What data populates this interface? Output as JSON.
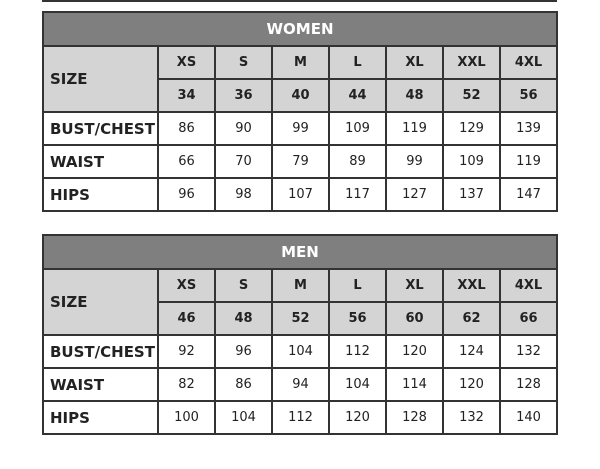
{
  "women": {
    "title": "WOMEN",
    "size_label": "SIZE",
    "sizes": [
      "XS",
      "S",
      "M",
      "L",
      "XL",
      "XXL",
      "4XL"
    ],
    "numbers": [
      "34",
      "36",
      "40",
      "44",
      "48",
      "52",
      "56"
    ],
    "rows": [
      {
        "label": "BUST/CHEST",
        "values": [
          "86",
          "90",
          "99",
          "109",
          "119",
          "129",
          "139"
        ]
      },
      {
        "label": "WAIST",
        "values": [
          "66",
          "70",
          "79",
          "89",
          "99",
          "109",
          "119"
        ]
      },
      {
        "label": "HIPS",
        "values": [
          "96",
          "98",
          "107",
          "117",
          "127",
          "137",
          "147"
        ]
      }
    ]
  },
  "men": {
    "title": "MEN",
    "size_label": "SIZE",
    "sizes": [
      "XS",
      "S",
      "M",
      "L",
      "XL",
      "XXL",
      "4XL"
    ],
    "numbers": [
      "46",
      "48",
      "52",
      "56",
      "60",
      "62",
      "66"
    ],
    "rows": [
      {
        "label": "BUST/CHEST",
        "values": [
          "92",
          "96",
          "104",
          "112",
          "120",
          "124",
          "132"
        ]
      },
      {
        "label": "WAIST",
        "values": [
          "82",
          "86",
          "94",
          "104",
          "114",
          "120",
          "128"
        ]
      },
      {
        "label": "HIPS",
        "values": [
          "100",
          "104",
          "112",
          "120",
          "128",
          "132",
          "140"
        ]
      }
    ]
  },
  "colors": {
    "header": "#7f7f7f",
    "size_bg": "#d4d4d4",
    "border": "#333333"
  }
}
